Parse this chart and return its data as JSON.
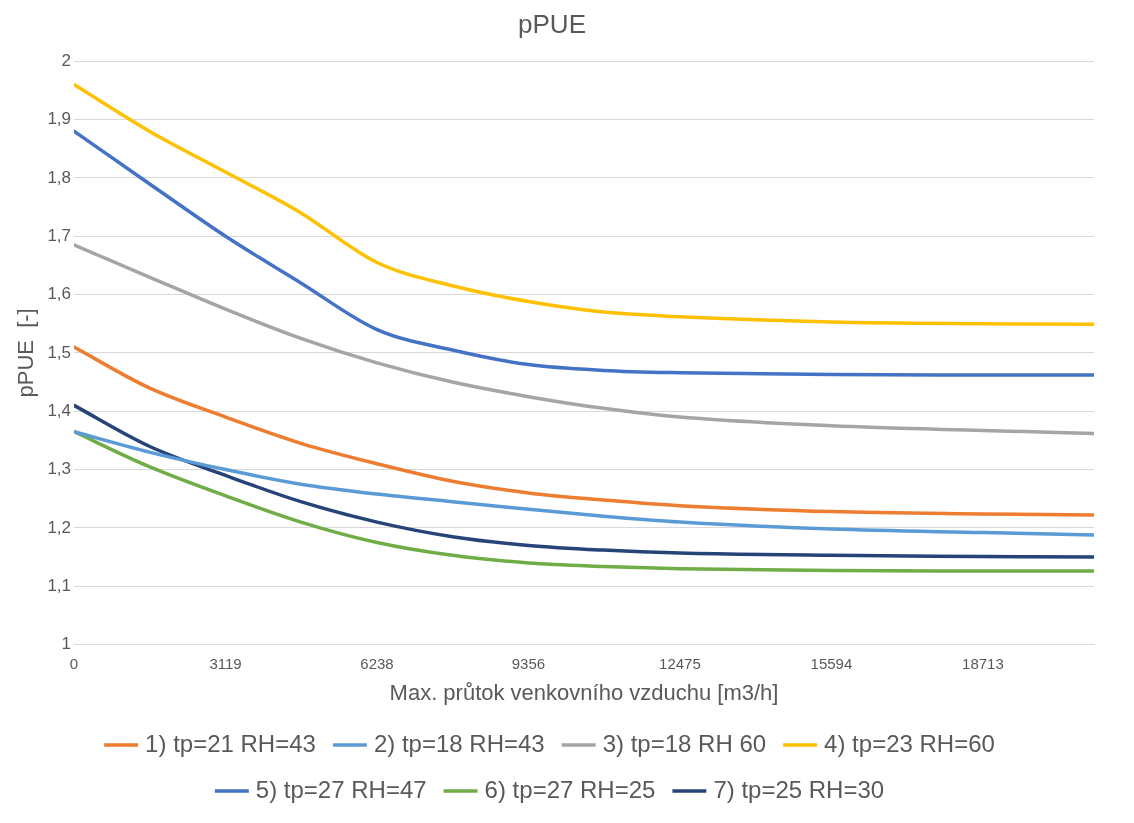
{
  "chart_data": {
    "type": "line",
    "title": "pPUE",
    "xlabel": "Max. průtok venkovního vzduchu [m3/h]",
    "ylabel": "pPUE  [-]",
    "x": [
      0,
      1550,
      3119,
      4670,
      6238,
      7790,
      9356,
      10900,
      12475,
      15594,
      18713,
      21000
    ],
    "xlim": [
      0,
      21000
    ],
    "xticks": [
      0,
      3119,
      6238,
      9356,
      12475,
      15594,
      18713
    ],
    "ylim": [
      1,
      2
    ],
    "yticks": [
      {
        "value": 1,
        "label": "1"
      },
      {
        "value": 1.1,
        "label": "1,1"
      },
      {
        "value": 1.2,
        "label": "1,2"
      },
      {
        "value": 1.3,
        "label": "1,3"
      },
      {
        "value": 1.4,
        "label": "1,4"
      },
      {
        "value": 1.5,
        "label": "1,5"
      },
      {
        "value": 1.6,
        "label": "1,6"
      },
      {
        "value": 1.7,
        "label": "1,7"
      },
      {
        "value": 1.8,
        "label": "1,8"
      },
      {
        "value": 1.9,
        "label": "1,9"
      },
      {
        "value": 2,
        "label": "2"
      }
    ],
    "grid": "y",
    "legend": "bottom",
    "marker": "none",
    "line_style": "solid",
    "series": [
      {
        "name": "1) tp=21 RH=43",
        "color": "#ed7d31",
        "values": [
          1.51,
          1.44,
          1.39,
          1.345,
          1.31,
          1.28,
          1.26,
          1.248,
          1.238,
          1.228,
          1.224,
          1.222
        ]
      },
      {
        "name": "2) tp=18 RH=43",
        "color": "#5b9bd5",
        "values": [
          1.365,
          1.33,
          1.3,
          1.275,
          1.258,
          1.245,
          1.232,
          1.22,
          1.21,
          1.198,
          1.192,
          1.188
        ]
      },
      {
        "name": "3) tp=18 RH 60",
        "color": "#a5a5a5",
        "values": [
          1.685,
          1.63,
          1.575,
          1.525,
          1.483,
          1.45,
          1.425,
          1.405,
          1.39,
          1.375,
          1.367,
          1.362
        ]
      },
      {
        "name": "4) tp=23 RH=60",
        "color": "#ffc000",
        "values": [
          1.96,
          1.88,
          1.81,
          1.74,
          1.655,
          1.615,
          1.588,
          1.57,
          1.562,
          1.553,
          1.55,
          1.549
        ]
      },
      {
        "name": "5) tp=27 RH=47",
        "color": "#4472c4",
        "values": [
          1.88,
          1.79,
          1.7,
          1.62,
          1.54,
          1.505,
          1.48,
          1.47,
          1.466,
          1.463,
          1.462,
          1.462
        ]
      },
      {
        "name": "6) tp=27 RH=25",
        "color": "#70ad47",
        "values": [
          1.365,
          1.305,
          1.255,
          1.21,
          1.175,
          1.153,
          1.14,
          1.134,
          1.13,
          1.127,
          1.126,
          1.126
        ]
      },
      {
        "name": "7) tp=25 RH=30",
        "color": "#264478",
        "values": [
          1.41,
          1.34,
          1.29,
          1.245,
          1.21,
          1.185,
          1.17,
          1.162,
          1.157,
          1.153,
          1.151,
          1.15
        ]
      }
    ]
  }
}
